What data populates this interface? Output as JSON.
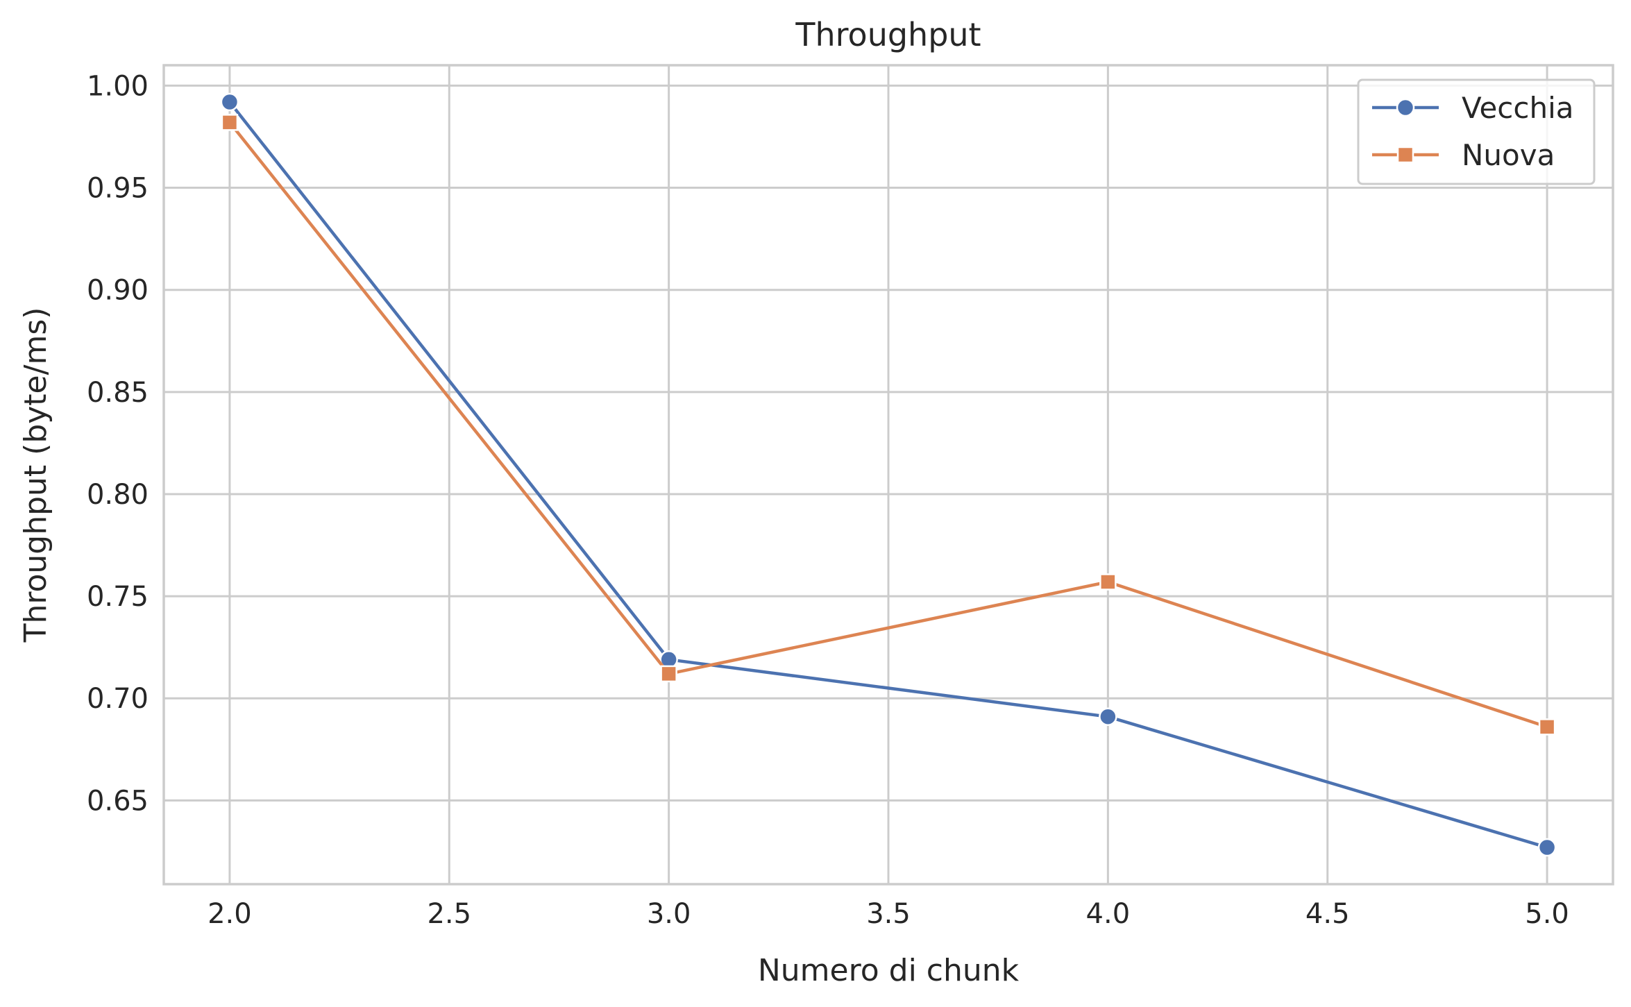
{
  "chart_data": {
    "type": "line",
    "title": "Throughput",
    "xlabel": "Numero di chunk",
    "ylabel": "Throughput (byte/ms)",
    "x": [
      2.0,
      3.0,
      4.0,
      5.0
    ],
    "xlim": [
      1.85,
      5.15
    ],
    "ylim": [
      0.609,
      1.01
    ],
    "xticks": [
      "2.0",
      "2.5",
      "3.0",
      "3.5",
      "4.0",
      "4.5",
      "5.0"
    ],
    "yticks": [
      "0.65",
      "0.70",
      "0.75",
      "0.80",
      "0.85",
      "0.90",
      "0.95",
      "1.00"
    ],
    "grid": true,
    "legend_position": "top-right",
    "series": [
      {
        "name": "Vecchia",
        "values": [
          0.992,
          0.719,
          0.691,
          0.627
        ],
        "color": "#4c72b0",
        "marker": "circle"
      },
      {
        "name": "Nuova",
        "values": [
          0.982,
          0.712,
          0.757,
          0.686
        ],
        "color": "#dd8452",
        "marker": "square"
      }
    ]
  }
}
